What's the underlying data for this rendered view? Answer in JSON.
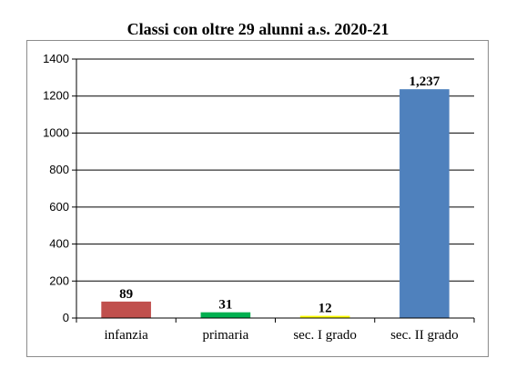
{
  "chart_data": {
    "type": "bar",
    "title": "Classi con oltre 29 alunni a.s. 2020-21",
    "categories": [
      "infanzia",
      "primaria",
      "sec. I grado",
      "sec. II grado"
    ],
    "values": [
      89,
      31,
      12,
      1237
    ],
    "data_labels": [
      "89",
      "31",
      "12",
      "1,237"
    ],
    "colors": [
      "#c0504d",
      "#00b050",
      "#ffff00",
      "#4f81bd"
    ],
    "ylim": [
      0,
      1400
    ],
    "yticks": [
      0,
      200,
      400,
      600,
      800,
      1000,
      1200,
      1400
    ],
    "xlabel": "",
    "ylabel": "",
    "grid": true,
    "legend": "none"
  }
}
